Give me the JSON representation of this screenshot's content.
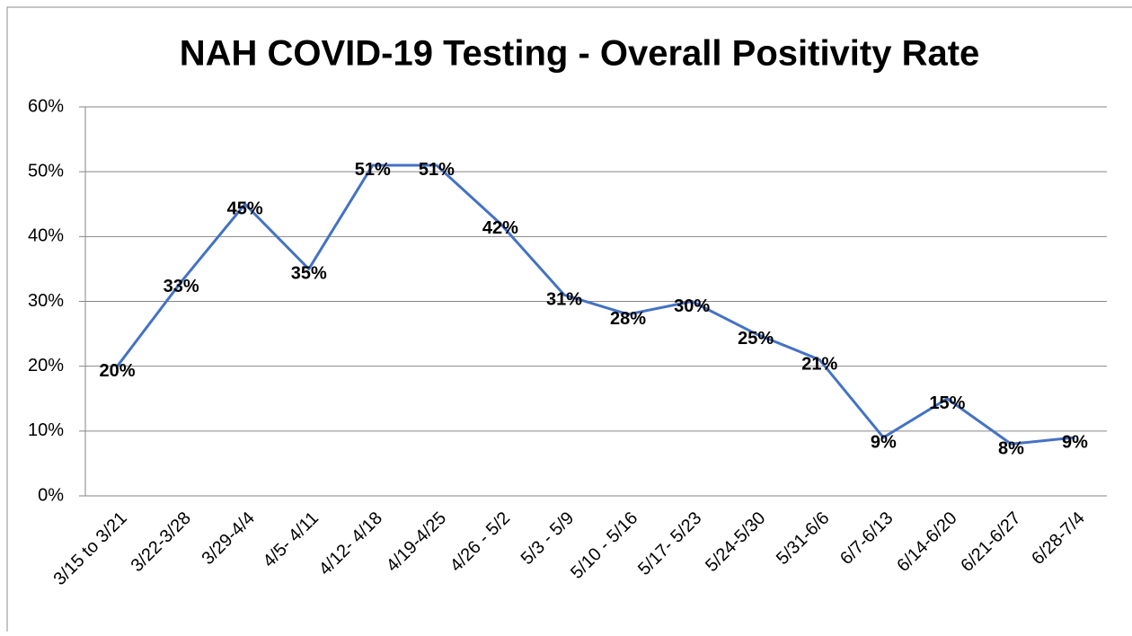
{
  "chart_data": {
    "type": "line",
    "title": "NAH COVID-19 Testing - Overall Positivity Rate",
    "categories": [
      "3/15 to 3/21",
      "3/22-3/28",
      "3/29-4/4",
      "4/5- 4/11",
      "4/12- 4/18",
      "4/19-4/25",
      "4/26 - 5/2",
      "5/3 - 5/9",
      "5/10 - 5/16",
      "5/17- 5/23",
      "5/24-5/30",
      "5/31-6/6",
      "6/7-6/13",
      "6/14-6/20",
      "6/21-6/27",
      "6/28-7/4"
    ],
    "values": [
      20,
      33,
      45,
      35,
      51,
      51,
      42,
      31,
      28,
      30,
      25,
      21,
      9,
      15,
      8,
      9
    ],
    "value_labels": [
      "20%",
      "33%",
      "45%",
      "35%",
      "51%",
      "51%",
      "42%",
      "31%",
      "28%",
      "30%",
      "25%",
      "21%",
      "9%",
      "15%",
      "8%",
      "9%"
    ],
    "color": "#4472c4",
    "ylim": [
      0,
      60
    ],
    "yticks": [
      {
        "value": 0,
        "label": "0%"
      },
      {
        "value": 10,
        "label": "10%"
      },
      {
        "value": 20,
        "label": "20%"
      },
      {
        "value": 30,
        "label": "30%"
      },
      {
        "value": 40,
        "label": "40%"
      },
      {
        "value": 50,
        "label": "50%"
      },
      {
        "value": 60,
        "label": "60%"
      }
    ],
    "grid": true
  }
}
